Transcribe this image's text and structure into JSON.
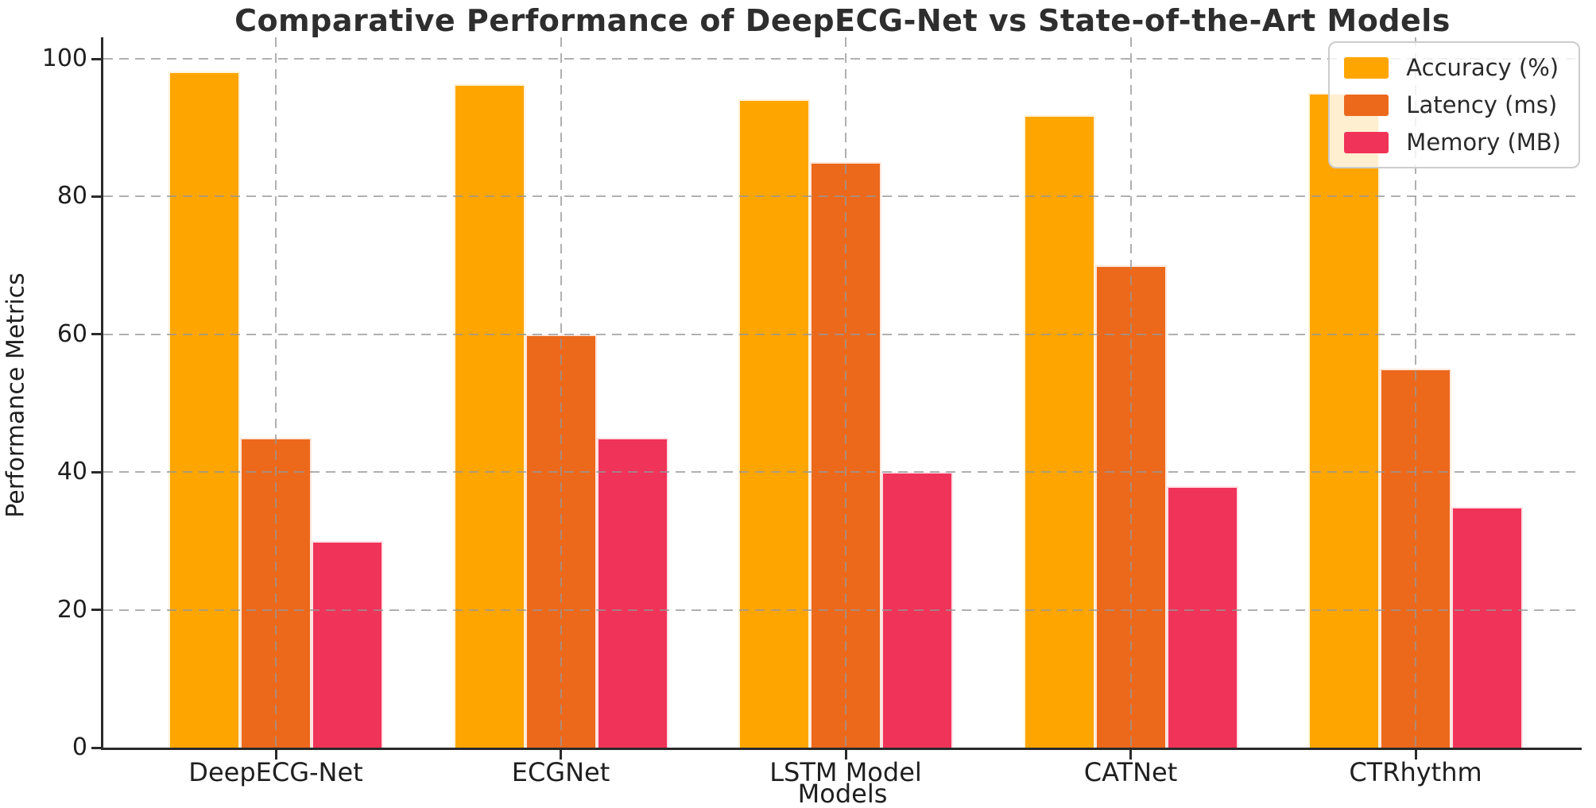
{
  "chart_data": {
    "type": "bar",
    "title": "Comparative Performance of DeepECG-Net vs State-of-the-Art Models",
    "xlabel": "Models",
    "ylabel": "Performance Metrics",
    "categories": [
      "DeepECG-Net",
      "ECGNet",
      "LSTM Model",
      "CATNet",
      "CTRhythm"
    ],
    "series": [
      {
        "name": "Accuracy (%)",
        "color": "#FFA500",
        "values": [
          98.2,
          96.3,
          94.1,
          91.8,
          95.0
        ]
      },
      {
        "name": "Latency (ms)",
        "color": "#EC691C",
        "values": [
          45,
          60,
          85,
          70,
          55
        ]
      },
      {
        "name": "Memory (MB)",
        "color": "#F03358",
        "values": [
          30,
          45,
          40,
          38,
          35
        ]
      }
    ],
    "ylim": [
      0,
      100
    ],
    "yticks": [
      0,
      20,
      40,
      60,
      80,
      100
    ],
    "grid": "dashed, horizontal and vertical, drawn over bars",
    "legend_position": "upper right"
  }
}
